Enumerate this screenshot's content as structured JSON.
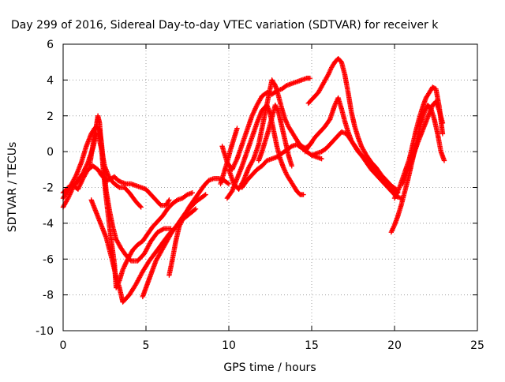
{
  "chart_data": {
    "type": "scatter",
    "title": "Day 299 of 2016, Sidereal Day-to-day VTEC variation (SDTVAR) for receiver k",
    "xlabel": "GPS time / hours",
    "ylabel": "SDTVAR / TECUs",
    "xlim": [
      0,
      25
    ],
    "ylim": [
      -10,
      6
    ],
    "xticks": [
      0,
      5,
      10,
      15,
      20,
      25
    ],
    "yticks": [
      -10,
      -8,
      -6,
      -4,
      -2,
      0,
      2,
      4,
      6
    ],
    "grid": true,
    "marker": "+",
    "color": "#ff0000",
    "series": [
      {
        "x": [
          0.0,
          0.3,
          0.6,
          0.9,
          1.2,
          1.5,
          1.8,
          2.1,
          2.3,
          2.5,
          2.7,
          2.9,
          3.1,
          3.3,
          3.5,
          3.8,
          4.1,
          4.4,
          4.7,
          5.0,
          5.3,
          5.6,
          5.9,
          6.2,
          6.4
        ],
        "y": [
          -2.3,
          -2.0,
          -1.9,
          -2.1,
          -1.5,
          -1.0,
          -0.8,
          -1.0,
          -1.3,
          -1.5,
          -1.6,
          -1.5,
          -1.4,
          -1.6,
          -1.7,
          -1.8,
          -1.8,
          -1.9,
          -2.0,
          -2.1,
          -2.4,
          -2.7,
          -3.0,
          -3.0,
          -2.7
        ]
      },
      {
        "x": [
          0.0,
          0.3,
          0.6,
          0.9,
          1.2,
          1.5,
          1.8,
          2.0,
          2.1,
          2.3,
          2.5,
          2.8,
          3.1,
          3.4,
          3.7,
          4.0,
          4.4,
          4.7
        ],
        "y": [
          -3.1,
          -2.6,
          -2.0,
          -1.6,
          -1.2,
          -0.6,
          0.2,
          1.0,
          1.0,
          0.2,
          -0.8,
          -1.5,
          -1.8,
          -2.0,
          -2.0,
          -2.3,
          -2.8,
          -3.1
        ]
      },
      {
        "x": [
          0.0,
          0.4,
          0.8,
          1.1,
          1.4,
          1.7,
          1.9,
          2.0,
          2.2,
          2.3,
          2.4,
          2.5,
          2.6,
          2.8,
          3.0,
          3.2,
          3.5,
          3.8,
          4.1,
          4.5,
          4.9,
          5.3,
          5.7,
          6.1,
          6.5
        ],
        "y": [
          -2.6,
          -2.0,
          -1.3,
          -0.6,
          0.3,
          1.0,
          1.3,
          1.4,
          1.2,
          0.6,
          -0.3,
          -1.3,
          -2.2,
          -3.3,
          -4.2,
          -4.9,
          -5.4,
          -5.8,
          -6.1,
          -6.1,
          -5.7,
          -5.0,
          -4.5,
          -4.3,
          -4.3
        ]
      },
      {
        "x": [
          1.6,
          1.8,
          2.0,
          2.1,
          2.2,
          2.3,
          2.4,
          2.5,
          2.6,
          2.7,
          2.8,
          2.9,
          3.0,
          3.1,
          3.2,
          3.4,
          3.6,
          3.9,
          4.2,
          4.5,
          4.8,
          5.1,
          5.4,
          5.7,
          6.0,
          6.3,
          6.6,
          6.9,
          7.2,
          7.5,
          7.8
        ],
        "y": [
          -0.8,
          0.4,
          1.4,
          2.0,
          1.6,
          0.4,
          -0.8,
          -1.7,
          -2.6,
          -3.4,
          -4.2,
          -4.9,
          -5.6,
          -6.3,
          -7.6,
          -7.2,
          -6.6,
          -6.0,
          -5.5,
          -5.2,
          -5.0,
          -4.6,
          -4.2,
          -3.9,
          -3.6,
          -3.2,
          -2.9,
          -2.7,
          -2.6,
          -2.4,
          -2.3
        ]
      },
      {
        "x": [
          1.7,
          2.0,
          2.3,
          2.6,
          2.8,
          3.0,
          3.2,
          3.4,
          3.6,
          4.0,
          4.4,
          4.8,
          5.2,
          5.6,
          6.0,
          6.4,
          6.8,
          7.2,
          7.6,
          8.0
        ],
        "y": [
          -2.7,
          -3.4,
          -4.1,
          -4.8,
          -5.5,
          -6.2,
          -7.0,
          -7.6,
          -8.4,
          -8.0,
          -7.4,
          -6.7,
          -6.1,
          -5.6,
          -5.1,
          -4.6,
          -4.2,
          -3.8,
          -3.5,
          -3.2
        ]
      },
      {
        "x": [
          4.8,
          5.0,
          5.2,
          5.4,
          5.6,
          5.9,
          6.2,
          6.5,
          6.8,
          7.1,
          7.4,
          7.7,
          8.0,
          8.3,
          8.6
        ],
        "y": [
          -8.1,
          -7.6,
          -7.1,
          -6.6,
          -6.1,
          -5.6,
          -5.1,
          -4.6,
          -4.2,
          -3.8,
          -3.4,
          -3.1,
          -2.8,
          -2.6,
          -2.4
        ]
      },
      {
        "x": [
          6.4,
          6.6,
          6.8,
          7.0,
          7.3,
          7.6,
          7.9,
          8.2,
          8.5,
          8.8,
          9.1,
          9.4,
          9.7,
          10.0
        ],
        "y": [
          -6.9,
          -6.0,
          -5.0,
          -4.2,
          -3.6,
          -3.1,
          -2.7,
          -2.3,
          -1.9,
          -1.6,
          -1.5,
          -1.5,
          -1.6,
          -1.8
        ]
      },
      {
        "x": [
          9.6,
          9.9,
          10.2,
          10.5,
          10.8,
          11.1,
          11.4,
          11.7,
          12.0,
          12.3,
          12.6,
          12.9,
          13.2,
          13.5,
          13.8,
          14.1,
          14.4,
          14.7,
          14.9
        ],
        "y": [
          0.3,
          -0.6,
          -1.0,
          -0.4,
          0.4,
          1.2,
          2.0,
          2.6,
          3.1,
          3.3,
          3.2,
          3.4,
          3.5,
          3.7,
          3.8,
          3.9,
          4.0,
          4.1,
          4.1
        ]
      },
      {
        "x": [
          9.9,
          10.2,
          10.5,
          10.8,
          11.1,
          11.4,
          11.7,
          12.0,
          12.3,
          12.5,
          12.7,
          12.9,
          13.1,
          13.3,
          13.5,
          13.7,
          13.9,
          14.1,
          14.3,
          14.5
        ],
        "y": [
          -2.6,
          -2.2,
          -1.5,
          -0.8,
          0.0,
          0.8,
          1.6,
          2.3,
          2.6,
          2.1,
          1.2,
          0.3,
          -0.4,
          -0.9,
          -1.3,
          -1.6,
          -1.9,
          -2.2,
          -2.4,
          -2.4
        ]
      },
      {
        "x": [
          10.0,
          10.3,
          10.6,
          10.9,
          11.2,
          11.5,
          11.8,
          12.0,
          12.2,
          12.4,
          12.6,
          12.8,
          13.0,
          13.2,
          13.4,
          13.6,
          13.8,
          14.0,
          14.2,
          14.4,
          14.6,
          14.8,
          15.0
        ],
        "y": [
          -1.0,
          -1.8,
          -2.1,
          -1.6,
          -0.9,
          -0.4,
          0.4,
          1.3,
          2.2,
          3.1,
          4.0,
          3.7,
          3.1,
          2.4,
          1.8,
          1.4,
          1.1,
          0.8,
          0.5,
          0.3,
          0.2,
          0.3,
          0.5
        ]
      },
      {
        "x": [
          10.8,
          11.1,
          11.4,
          11.7,
          12.0,
          12.3,
          12.6,
          12.9,
          13.2,
          13.5,
          13.8,
          14.1,
          14.4,
          14.7,
          15.0,
          15.3,
          15.6
        ],
        "y": [
          -2.0,
          -1.6,
          -1.3,
          -1.0,
          -0.8,
          -0.5,
          -0.4,
          -0.3,
          -0.1,
          0.1,
          0.3,
          0.4,
          0.2,
          0.0,
          -0.2,
          -0.3,
          -0.4
        ]
      },
      {
        "x": [
          14.8,
          15.1,
          15.4,
          15.7,
          16.0,
          16.2,
          16.4,
          16.6,
          16.8,
          17.0,
          17.2,
          17.4,
          17.6,
          17.8,
          18.0,
          18.3,
          18.6,
          18.9,
          19.2,
          19.5,
          19.8,
          20.1
        ],
        "y": [
          2.7,
          3.0,
          3.3,
          3.8,
          4.3,
          4.7,
          5.0,
          5.2,
          5.0,
          4.3,
          3.3,
          2.2,
          1.4,
          0.8,
          0.3,
          -0.2,
          -0.6,
          -0.9,
          -1.3,
          -1.6,
          -1.9,
          -2.1
        ]
      },
      {
        "x": [
          14.6,
          14.9,
          15.2,
          15.5,
          15.8,
          16.1,
          16.4,
          16.6,
          16.8,
          17.0,
          17.2,
          17.4,
          17.6,
          17.8,
          18.1,
          18.4,
          18.7,
          19.0,
          19.3,
          19.6,
          19.9,
          20.2
        ],
        "y": [
          0.0,
          0.4,
          0.8,
          1.1,
          1.4,
          1.8,
          2.6,
          3.0,
          2.4,
          1.7,
          1.1,
          0.6,
          0.3,
          0.0,
          -0.3,
          -0.6,
          -0.9,
          -1.2,
          -1.5,
          -1.8,
          -2.1,
          -2.3
        ]
      },
      {
        "x": [
          15.0,
          15.3,
          15.6,
          15.9,
          16.2,
          16.5,
          16.8,
          17.1,
          17.4,
          17.7,
          18.0,
          18.3,
          18.6,
          18.9,
          19.2,
          19.5,
          19.8,
          20.1,
          20.4
        ],
        "y": [
          -0.2,
          -0.1,
          0.0,
          0.2,
          0.5,
          0.8,
          1.1,
          1.0,
          0.6,
          0.2,
          -0.2,
          -0.6,
          -1.0,
          -1.3,
          -1.6,
          -1.9,
          -2.2,
          -2.5,
          -2.6
        ]
      },
      {
        "x": [
          19.8,
          20.0,
          20.2,
          20.4,
          20.6,
          20.8,
          21.0,
          21.2,
          21.4,
          21.6,
          21.8,
          22.0,
          22.2,
          22.4,
          22.6,
          22.8,
          23.0
        ],
        "y": [
          -4.5,
          -4.1,
          -3.6,
          -3.0,
          -2.3,
          -1.6,
          -0.8,
          0.0,
          0.8,
          1.6,
          2.2,
          2.6,
          2.4,
          1.8,
          1.0,
          0.0,
          -0.5
        ]
      },
      {
        "x": [
          20.0,
          20.3,
          20.6,
          20.9,
          21.1,
          21.3,
          21.5,
          21.7,
          21.9,
          22.1,
          22.3,
          22.5,
          22.7,
          22.9
        ],
        "y": [
          -2.6,
          -2.0,
          -1.2,
          -0.4,
          0.4,
          1.2,
          1.9,
          2.5,
          3.0,
          3.3,
          3.6,
          3.5,
          2.5,
          1.0
        ]
      },
      {
        "x": [
          20.5,
          20.8,
          21.1,
          21.4,
          21.7,
          22.0,
          22.3,
          22.5,
          22.7,
          22.9
        ],
        "y": [
          -1.8,
          -1.0,
          -0.3,
          0.5,
          1.2,
          1.9,
          2.6,
          2.8,
          2.3,
          1.6
        ]
      },
      {
        "x": [
          9.5,
          9.7,
          9.9,
          10.1,
          10.3,
          10.5
        ],
        "y": [
          -1.8,
          -1.2,
          -0.6,
          0.1,
          0.7,
          1.3
        ]
      },
      {
        "x": [
          11.8,
          12.0,
          12.2,
          12.4,
          12.6,
          12.8,
          13.0,
          13.2,
          13.4,
          13.6,
          13.8
        ],
        "y": [
          -0.5,
          0.0,
          0.6,
          1.2,
          1.9,
          2.6,
          2.2,
          1.4,
          0.6,
          -0.2,
          -0.8
        ]
      }
    ]
  }
}
